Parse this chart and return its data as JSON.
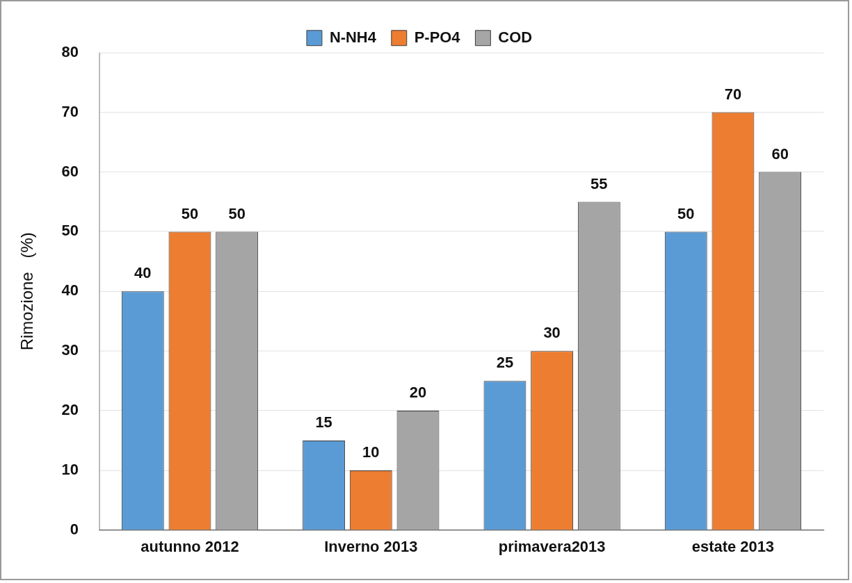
{
  "chart_data": {
    "type": "bar",
    "categories": [
      "autunno 2012",
      "Inverno 2013",
      "primavera2013",
      "estate 2013"
    ],
    "series": [
      {
        "name": "N-NH4",
        "color": "#5b9bd5",
        "values": [
          40,
          15,
          25,
          50
        ]
      },
      {
        "name": "P-PO4",
        "color": "#ed7d31",
        "values": [
          50,
          10,
          30,
          70
        ]
      },
      {
        "name": "COD",
        "color": "#a5a5a5",
        "values": [
          50,
          20,
          55,
          60
        ]
      }
    ],
    "ylabel": "Rimozione   (%)",
    "ylim": [
      0,
      80
    ],
    "yticks": [
      0,
      10,
      20,
      30,
      40,
      50,
      60,
      70,
      80
    ],
    "grid": "y",
    "legend": "top",
    "data_labels": true
  }
}
